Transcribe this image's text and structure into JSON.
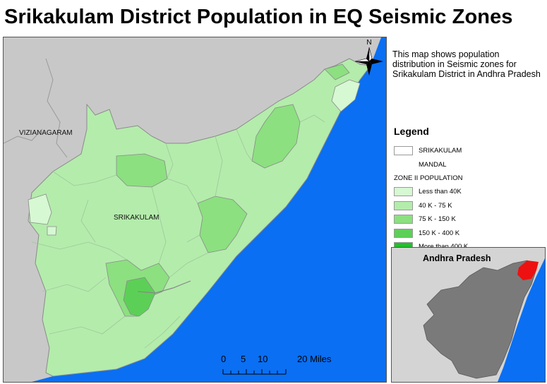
{
  "title": "Srikakulam District Population in EQ Seismic Zones",
  "description": [
    "This map shows population",
    "distribution in Seismic zones for",
    "Srikakulam District in Andhra Pradesh"
  ],
  "map_labels": {
    "region": "VIZIANAGARAM",
    "district": "SRIKAKULAM",
    "north": "N"
  },
  "legend": {
    "title": "Legend",
    "district_item": "SRIKAKULAM",
    "mandal_item": "MANDAL",
    "zone_heading": "ZONE II POPULATION",
    "classes": [
      {
        "label": "Less than 40K",
        "color": "#d6f8d2"
      },
      {
        "label": "40 K - 75 K",
        "color": "#b4ecac"
      },
      {
        "label": "75 K - 150 K",
        "color": "#8ce080"
      },
      {
        "label": "150 K - 400 K",
        "color": "#5cd056"
      },
      {
        "label": "More than 400 K",
        "color": "#20c02a"
      }
    ]
  },
  "scale_bar": {
    "labels": [
      "0",
      "5",
      "10",
      "20 Miles"
    ]
  },
  "inset": {
    "title": "Andhra Pradesh"
  },
  "colors": {
    "sea": "#0a6ff2",
    "land_outside": "#c8c8c8",
    "state_inset": "#7a7a7a",
    "highlight": "#ee1111",
    "boundary": "#8a8a8a"
  }
}
